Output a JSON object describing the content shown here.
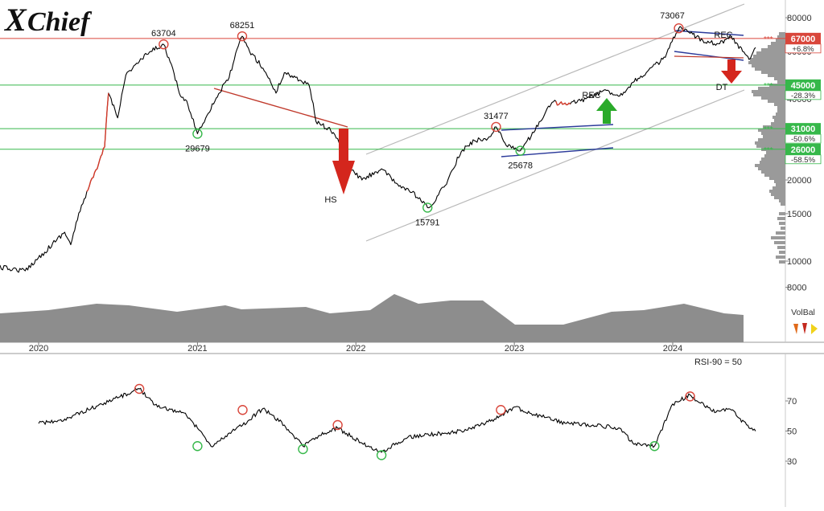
{
  "logo": {
    "text_x": "X",
    "text_rest": "Chief"
  },
  "chart_data": [
    {
      "type": "line",
      "panel": "price",
      "scale": "log",
      "x_ticks": [
        "2020",
        "2021",
        "2022",
        "2023",
        "2024"
      ],
      "y_ticks": [
        80000,
        60000,
        40000,
        20000,
        15000,
        10000,
        8000
      ],
      "series": [
        {
          "x": [
            "2019-10-01",
            "2019-12-01",
            "2020-01-15",
            "2020-03-01",
            "2020-03-15",
            "2020-04-15",
            "2020-05-15",
            "2020-06-01",
            "2020-06-10",
            "2020-07-01",
            "2020-07-20",
            "2020-08-20",
            "2020-09-15",
            "2020-10-15",
            "2020-11-20",
            "2020-12-10",
            "2021-01-01",
            "2021-01-20",
            "2021-03-15",
            "2021-04-14",
            "2021-05-01",
            "2021-06-01",
            "2021-07-01",
            "2021-07-20",
            "2021-08-15",
            "2021-09-15",
            "2021-10-01",
            "2021-10-15",
            "2021-11-10",
            "2021-11-20",
            "2021-12-05",
            "2022-01-15",
            "2022-03-01",
            "2022-04-01",
            "2022-05-10",
            "2022-06-15",
            "2022-07-01",
            "2022-08-01",
            "2022-09-01",
            "2022-10-01",
            "2022-11-01",
            "2022-11-20",
            "2022-12-10",
            "2023-01-01",
            "2023-01-15",
            "2023-02-15",
            "2023-03-15",
            "2023-04-01",
            "2023-05-01",
            "2023-06-15",
            "2023-08-01",
            "2023-09-01",
            "2023-10-01",
            "2023-11-01",
            "2023-12-15",
            "2024-01-15",
            "2024-02-10",
            "2024-03-10",
            "2024-04-15",
            "2024-05-15",
            "2024-06-10",
            "2024-06-25",
            "2024-07-10"
          ],
          "y": [
            9500,
            9200,
            10800,
            12800,
            11500,
            17000,
            22000,
            26500,
            42000,
            34000,
            49000,
            55000,
            60000,
            63704,
            42000,
            38000,
            29679,
            34000,
            48000,
            68251,
            60000,
            52000,
            42000,
            50000,
            48000,
            45000,
            33000,
            32000,
            30000,
            28500,
            23000,
            20000,
            22000,
            19500,
            18000,
            15791,
            16500,
            20000,
            25500,
            28000,
            28500,
            31477,
            27500,
            26000,
            25678,
            30000,
            36000,
            39000,
            38000,
            40000,
            43000,
            41000,
            46000,
            50000,
            57000,
            73067,
            70000,
            66000,
            64000,
            68000,
            60000,
            56000,
            62000
          ]
        }
      ],
      "pattern_labels": [
        "HS",
        "REC",
        "REC",
        "DT"
      ],
      "point_labels": [
        "63704",
        "68251",
        "29679",
        "15791",
        "31477",
        "25678",
        "73067"
      ],
      "levels": [
        {
          "value": "67000",
          "pct": "+6.8%",
          "color": "#d9463b"
        },
        {
          "value": "45000",
          "pct": "-28.3%",
          "color": "#36b84a"
        },
        {
          "value": "31000",
          "pct": "-50.6%",
          "color": "#36b84a"
        },
        {
          "value": "26000",
          "pct": "-58.5%",
          "color": "#36b84a"
        }
      ]
    },
    {
      "type": "area",
      "panel": "volume-balance",
      "label": "VolBal"
    },
    {
      "type": "line",
      "panel": "rsi",
      "title": "RSI-90 = 50",
      "y_ticks": [
        70,
        50,
        30
      ],
      "series": [
        {
          "x": [
            "2020-01-01",
            "2020-03-01",
            "2020-05-01",
            "2020-07-01",
            "2020-08-20",
            "2020-10-01",
            "2020-12-01",
            "2021-01-01",
            "2021-02-01",
            "2021-04-15",
            "2021-06-01",
            "2021-07-20",
            "2021-09-01",
            "2021-10-10",
            "2021-11-20",
            "2022-01-15",
            "2022-03-01",
            "2022-05-01",
            "2022-07-01",
            "2022-09-01",
            "2022-10-15",
            "2022-12-01",
            "2023-01-01",
            "2023-02-15",
            "2023-03-15",
            "2023-05-01",
            "2023-07-01",
            "2023-09-01",
            "2023-10-01",
            "2023-11-20",
            "2024-01-01",
            "2024-02-10",
            "2024-04-01",
            "2024-05-15",
            "2024-06-25",
            "2024-07-10"
          ],
          "y": [
            55,
            58,
            65,
            72,
            78,
            66,
            62,
            52,
            40,
            54,
            65,
            54,
            40,
            47,
            52,
            42,
            36,
            46,
            48,
            50,
            54,
            60,
            66,
            61,
            59,
            55,
            54,
            52,
            42,
            40,
            68,
            74,
            63,
            64,
            52,
            50
          ]
        }
      ]
    }
  ]
}
